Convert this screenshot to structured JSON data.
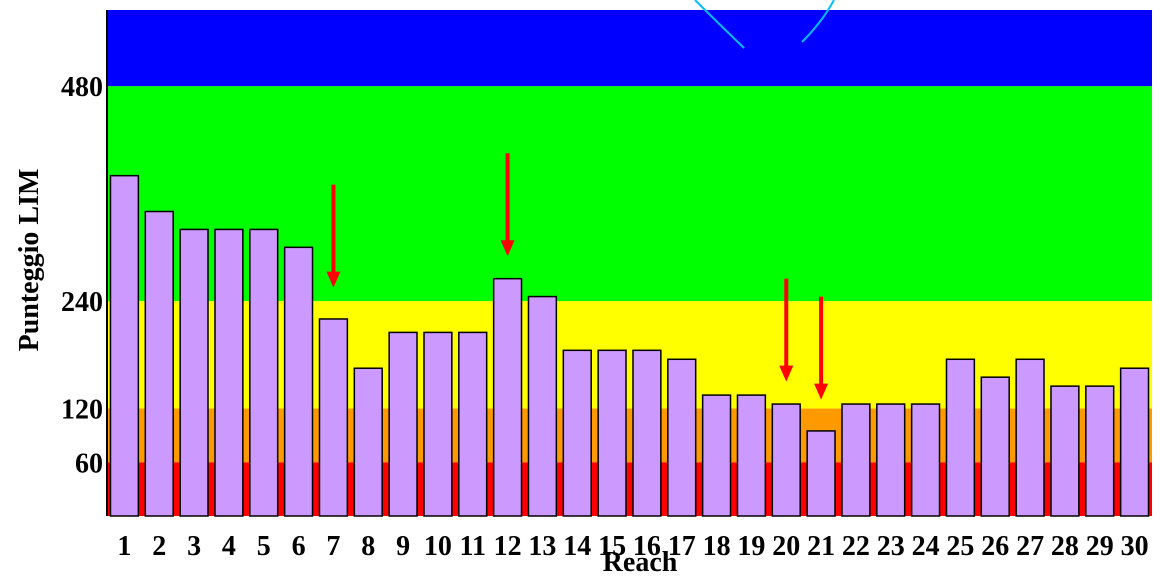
{
  "chart_data": {
    "type": "bar",
    "xlabel": "Reach",
    "ylabel": "Punteggio LIM",
    "ylim": [
      0,
      565
    ],
    "yticks": [
      60,
      120,
      240,
      480
    ],
    "categories": [
      "1",
      "2",
      "3",
      "4",
      "5",
      "6",
      "7",
      "8",
      "9",
      "10",
      "11",
      "12",
      "13",
      "14",
      "15",
      "16",
      "17",
      "18",
      "19",
      "20",
      "21",
      "22",
      "23",
      "24",
      "25",
      "26",
      "27",
      "28",
      "29",
      "30"
    ],
    "values": [
      380,
      340,
      320,
      320,
      320,
      300,
      220,
      165,
      205,
      205,
      205,
      265,
      245,
      185,
      185,
      185,
      175,
      135,
      135,
      125,
      95,
      125,
      125,
      125,
      175,
      155,
      175,
      145,
      145,
      165
    ],
    "bar_color": "#cc99ff",
    "bands": [
      {
        "from": 0,
        "to": 60,
        "color": "#ff0000"
      },
      {
        "from": 60,
        "to": 120,
        "color": "#ff9900"
      },
      {
        "from": 120,
        "to": 240,
        "color": "#ffff00"
      },
      {
        "from": 240,
        "to": 480,
        "color": "#00ff00"
      },
      {
        "from": 480,
        "to": 565,
        "color": "#0000ff"
      }
    ],
    "arrows": [
      {
        "category": "7",
        "from": 370,
        "to": 255
      },
      {
        "category": "12",
        "from": 405,
        "to": 290
      },
      {
        "category": "20",
        "from": 265,
        "to": 150
      },
      {
        "category": "21",
        "from": 245,
        "to": 130
      }
    ],
    "arrow_color": "#ff0000",
    "decoration_color": "#00bfff"
  }
}
